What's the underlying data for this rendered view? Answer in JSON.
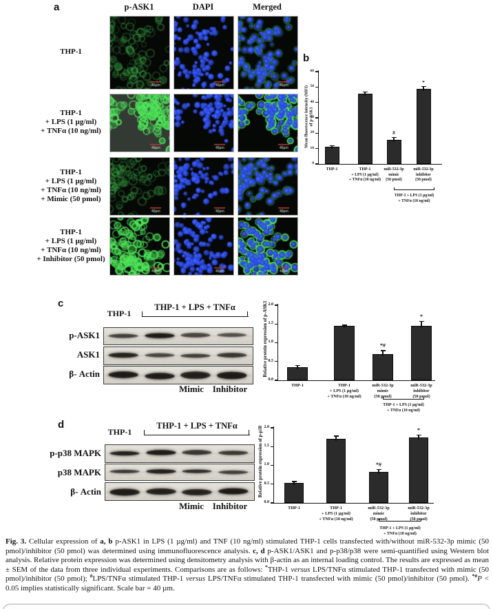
{
  "figure": {
    "panel_a": {
      "label": "a",
      "column_headers": [
        "p-ASK1",
        "DAPI",
        "Merged"
      ],
      "rows": [
        {
          "label": "THP-1",
          "cells": [
            "green-dim",
            "dapi",
            "merged-dim"
          ]
        },
        {
          "label": "THP-1\n+ LPS (1 µg/ml)\n+ TNFα (10 ng/ml)",
          "cells": [
            "green-bright-gray",
            "dapi",
            "merged-bright"
          ]
        },
        {
          "label": "THP-1\n+ LPS (1 µg/ml)\n+ TNFα (10 ng/ml)\n+ Mimic (50 pmol)",
          "cells": [
            "green-dim",
            "dapi",
            "merged-dim"
          ]
        },
        {
          "label": "THP-1\n+ LPS (1 µg/ml)\n+ TNFα (10 ng/ml)\n+ Inhibitor (50 pmol)",
          "cells": [
            "green-bright",
            "dapi",
            "merged-bright"
          ]
        }
      ],
      "scale_bar_text": "40µm"
    },
    "panel_b": {
      "label": "b"
    },
    "panel_c": {
      "label": "c",
      "header_left": "THP-1",
      "header_bracket": "THP-1 + LPS + TNFα",
      "blots": [
        {
          "label": "p-ASK1",
          "bands": [
            0.55,
            0.95,
            0.5,
            0.45
          ],
          "thick": false
        },
        {
          "label": "ASK1",
          "bands": [
            0.8,
            0.5,
            0.55,
            0.6
          ],
          "thick": false
        },
        {
          "label": "β- Actin",
          "bands": [
            0.95,
            0.9,
            0.85,
            0.95
          ],
          "thick": true
        }
      ],
      "lane_labels": [
        "Mimic",
        "Inhibitor"
      ]
    },
    "panel_d": {
      "label": "d",
      "header_left": "THP-1",
      "header_bracket": "THP-1 + LPS + TNFα",
      "blots": [
        {
          "label": "p-p38 MAPK",
          "bands": [
            0.85,
            0.95,
            0.62,
            0.6
          ],
          "thick": false
        },
        {
          "label": "p38 MAPK",
          "bands": [
            0.6,
            0.85,
            0.7,
            0.55
          ],
          "thick": false
        },
        {
          "label": "β- Actin",
          "bands": [
            0.9,
            0.85,
            0.8,
            0.95
          ],
          "thick": true
        }
      ],
      "lane_labels": [
        "Mimic",
        "Inhibitor"
      ]
    },
    "caption": {
      "segments": [
        {
          "t": "Fig. 3.",
          "b": true
        },
        {
          "t": " Cellular expression of "
        },
        {
          "t": "a, b",
          "b": true
        },
        {
          "t": " p-ASK1 in LPS (1 µg/ml) and TNF (10 ng/ml) stimulated THP-1 cells transfected with/without miR-532-3p mimic (50 pmol)/inhibitor (50 pmol) was determined using immunofluorescence analysis. "
        },
        {
          "t": "c, d",
          "b": true
        },
        {
          "t": " p-ASK1/ASK1 and p-p38/p38 were semi-quantified using Western blot analysis. Relative protein expression was determined using densitometry analysis with β-actin as an internal loading control. The results are expressed as mean ± SEM of the data from three individual experiments. Comparisons are as follows: "
        },
        {
          "t": "*",
          "b": true,
          "sup": true
        },
        {
          "t": "THP-1 "
        },
        {
          "t": "versus",
          "i": true
        },
        {
          "t": " LPS/TNFα stimulated THP-1 transfected with mimic (50 pmol)/inhibitor (50 pmol); "
        },
        {
          "t": "#",
          "b": true,
          "sup": true
        },
        {
          "t": "LPS/TNFα stimulated THP-1 "
        },
        {
          "t": "versus",
          "i": true
        },
        {
          "t": " LPS/TNFα stimulated THP-1 transfected with mimic (50 pmol)/inhibitor (50 pmol). "
        },
        {
          "t": "*#",
          "b": true,
          "sup": true
        },
        {
          "t": "P",
          "i": true
        },
        {
          "t": " < 0.05 implies statistically significant. Scale bar = 40 µm."
        }
      ]
    },
    "colors": {
      "bar_fill": "#2b2b2b",
      "axis": "#111111",
      "micro_green": "#46e05a",
      "micro_blue": "#2846e1",
      "scale_bar_red": "#b23b3b"
    }
  },
  "chart_data": [
    {
      "id": "b",
      "type": "bar",
      "ylabel": "Mean fluorescence intensity (MFI)\nof p-ASK1",
      "ylim": [
        0,
        60
      ],
      "yticks": [
        "0",
        "10",
        "20",
        "30",
        "40",
        "50",
        "60"
      ],
      "categories": [
        "THP-1",
        "THP-1\n+ LPS (1 µg/ml)\n+ TNFα (10 ng/ml)",
        "miR-532-3p\nmimic\n(50 pmol)",
        "miR-532-3p\ninhibitor\n(50 pmol)"
      ],
      "values": [
        11,
        45.5,
        15.5,
        49
      ],
      "errors": [
        1,
        1.5,
        2,
        1.5
      ],
      "annotations": [
        "",
        "",
        "#",
        "*"
      ],
      "group_bracket": {
        "from": 2,
        "to": 3,
        "label": "THP-1 + LPS (1 µg/ml)\n+ TNFα (10 ng/ml)"
      }
    },
    {
      "id": "c",
      "type": "bar",
      "ylabel": "Relative protein expression of p-ASK1",
      "ylim": [
        0,
        2
      ],
      "yticks": [
        "0.0",
        "0.5",
        "1.0",
        "1.5",
        "2.0"
      ],
      "categories": [
        "THP-1",
        "THP-1\n+ LPS (1 µg/ml)\n+ TNFα (10 ng/ml)",
        "miR-532-3p\nmimic\n(50 pmol)",
        "miR-532-3p\ninhibitor\n(50 pmol)"
      ],
      "values": [
        0.35,
        1.45,
        0.7,
        1.45
      ],
      "errors": [
        0.05,
        0.03,
        0.1,
        0.13
      ],
      "annotations": [
        "",
        "",
        "*#",
        "*"
      ],
      "group_bracket": {
        "from": 2,
        "to": 3,
        "label": "THP-1 + LPS (1 µg/ml)\n+ TNFα (10 ng/ml)"
      }
    },
    {
      "id": "d",
      "type": "bar",
      "ylabel": "Relative protein expression of p-p38",
      "ylim": [
        0,
        2
      ],
      "yticks": [
        "0.0",
        "0.5",
        "1.0",
        "1.5",
        "2.0"
      ],
      "categories": [
        "THP-1",
        "THP-1\n+ LPS (1 µg/ml)\n+ TNFα (10 ng/ml)",
        "miR-532-3p\nmimic\n(50 pmol)",
        "miR-532-3p\ninhibitor\n(50 pmol)"
      ],
      "values": [
        0.54,
        1.7,
        0.82,
        1.75
      ],
      "errors": [
        0.04,
        0.09,
        0.08,
        0.07
      ],
      "annotations": [
        "",
        "",
        "*#",
        "*"
      ],
      "group_bracket": {
        "from": 2,
        "to": 3,
        "label": "THP-1 + LPS (1 µg/ml)\n+ TNFα (10 ng/ml)"
      }
    }
  ]
}
